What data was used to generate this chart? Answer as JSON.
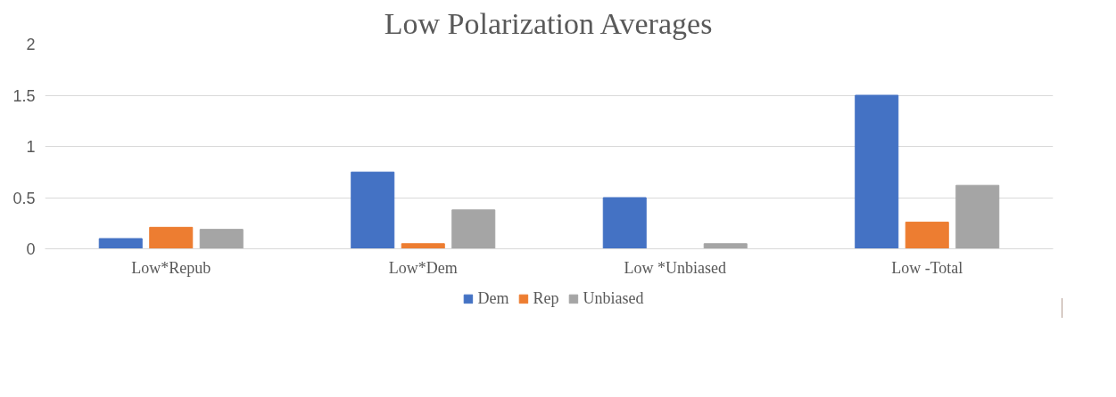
{
  "chart_data": {
    "type": "bar",
    "title": "Low Polarization Averages",
    "categories": [
      "Low*Repub",
      "Low*Dem",
      "Low *Unbiased",
      "Low -Total"
    ],
    "series": [
      {
        "name": "Dem",
        "color": "#4472c4",
        "values": [
          0.1,
          0.75,
          0.5,
          1.5
        ]
      },
      {
        "name": "Rep",
        "color": "#ed7d31",
        "values": [
          0.21,
          0.05,
          0,
          0.26
        ]
      },
      {
        "name": "Unbiased",
        "color": "#a5a5a5",
        "values": [
          0.19,
          0.38,
          0.05,
          0.62
        ]
      }
    ],
    "ylim": [
      0,
      2
    ],
    "yticks": [
      0,
      0.5,
      1,
      1.5,
      2
    ],
    "grid": "y",
    "legend": "bottom"
  }
}
